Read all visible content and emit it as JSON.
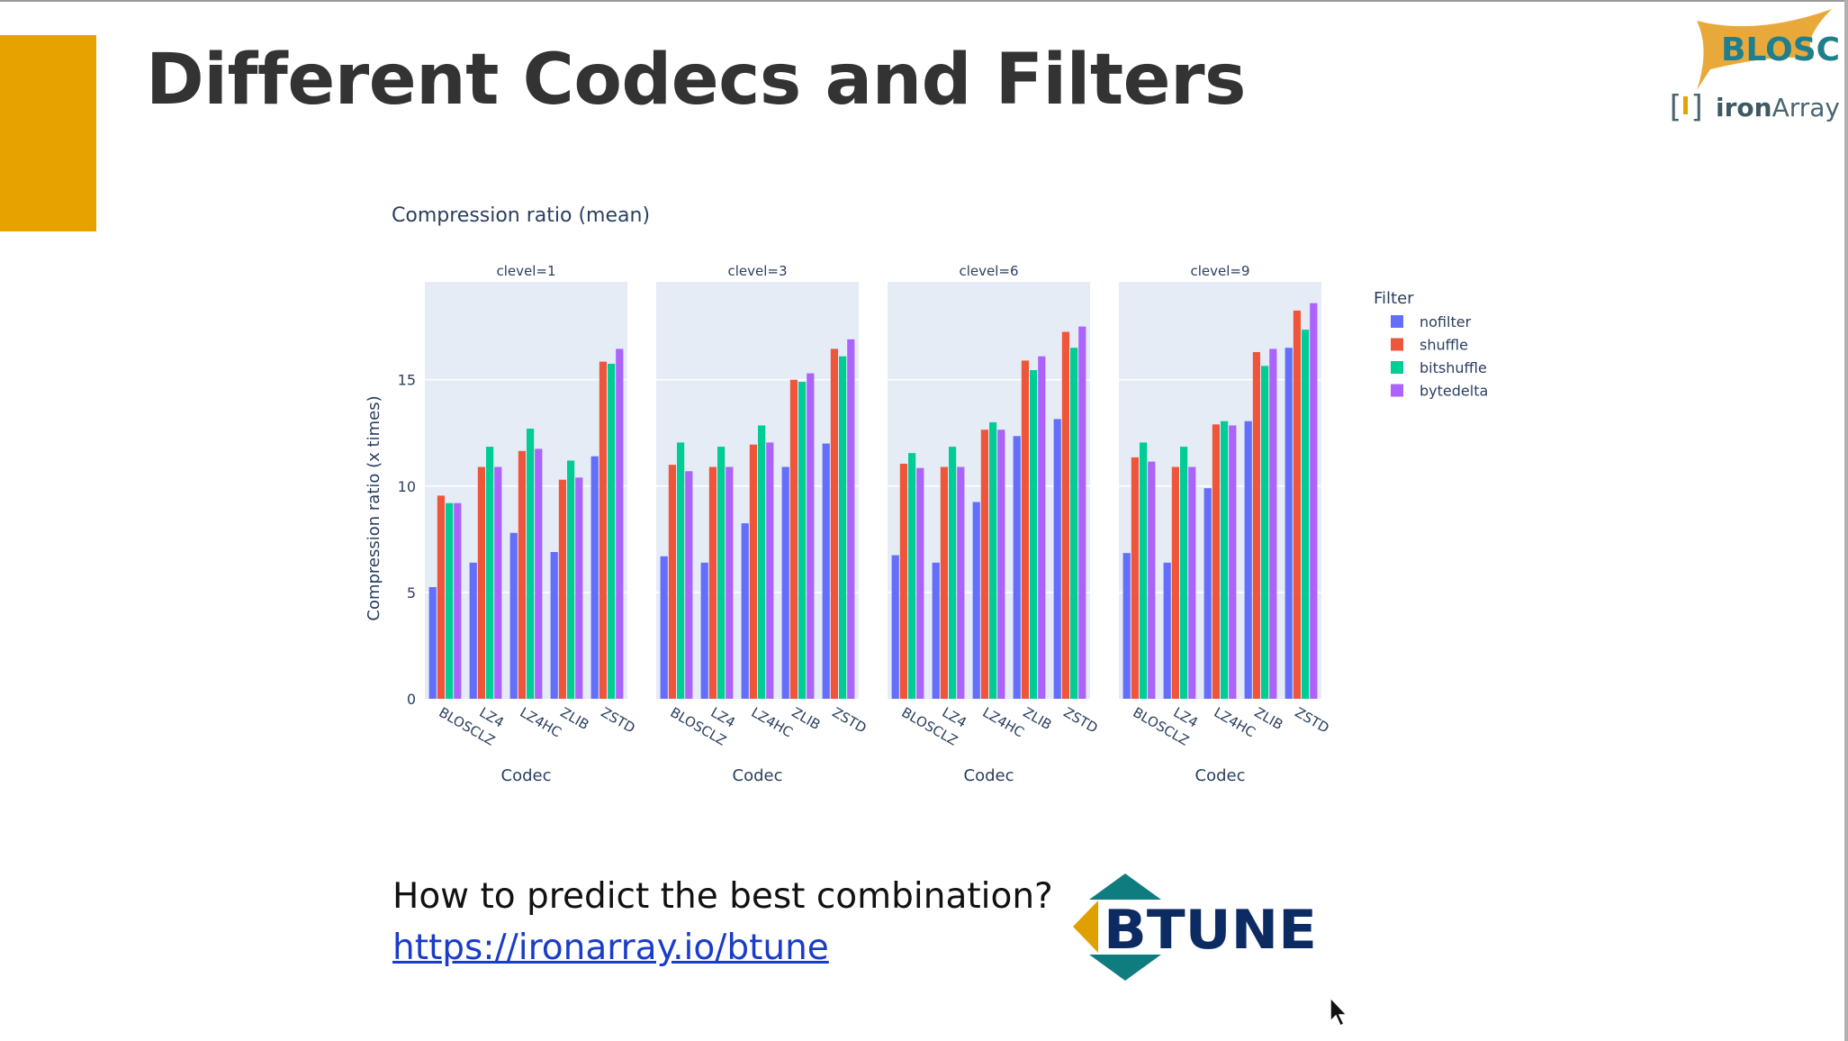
{
  "slide": {
    "title": "Different Codecs and Filters",
    "question": "How to predict the best combination?",
    "link": "https://ironarray.io/btune",
    "logos": {
      "blosc": "BLOSC",
      "ironarray_a": "iron",
      "ironarray_b": "Array",
      "btune": "BTUNE"
    }
  },
  "colors": {
    "accent": "#e8a200",
    "nofilter": "#636efa",
    "shuffle": "#ef553b",
    "bitshuffle": "#00cc96",
    "bytedelta": "#ab63fa",
    "plot_bg": "#e5ecf6"
  },
  "chart_data": {
    "type": "bar",
    "title": "Compression ratio (mean)",
    "xlabel": "Codec",
    "ylabel": "Compression ratio (x times)",
    "ylim": [
      0,
      19.6
    ],
    "yticks": [
      0,
      5,
      10,
      15
    ],
    "categories": [
      "BLOSCLZ",
      "LZ4",
      "LZ4HC",
      "ZLIB",
      "ZSTD"
    ],
    "legend": {
      "title": "Filter",
      "placement": "right"
    },
    "panels": [
      {
        "label": "clevel=1",
        "series": [
          {
            "name": "nofilter",
            "values": [
              5.25,
              6.4,
              7.8,
              6.9,
              11.4
            ]
          },
          {
            "name": "shuffle",
            "values": [
              9.55,
              10.9,
              11.65,
              10.3,
              15.85
            ]
          },
          {
            "name": "bitshuffle",
            "values": [
              9.2,
              11.85,
              12.7,
              11.2,
              15.75
            ]
          },
          {
            "name": "bytedelta",
            "values": [
              9.2,
              10.9,
              11.75,
              10.4,
              16.45
            ]
          }
        ]
      },
      {
        "label": "clevel=3",
        "series": [
          {
            "name": "nofilter",
            "values": [
              6.7,
              6.4,
              8.25,
              10.9,
              12.0
            ]
          },
          {
            "name": "shuffle",
            "values": [
              11.0,
              10.9,
              11.95,
              15.0,
              16.45
            ]
          },
          {
            "name": "bitshuffle",
            "values": [
              12.05,
              11.85,
              12.85,
              14.9,
              16.1
            ]
          },
          {
            "name": "bytedelta",
            "values": [
              10.7,
              10.9,
              12.05,
              15.3,
              16.9
            ]
          }
        ]
      },
      {
        "label": "clevel=6",
        "series": [
          {
            "name": "nofilter",
            "values": [
              6.75,
              6.4,
              9.25,
              12.35,
              13.15
            ]
          },
          {
            "name": "shuffle",
            "values": [
              11.05,
              10.9,
              12.65,
              15.9,
              17.25
            ]
          },
          {
            "name": "bitshuffle",
            "values": [
              11.55,
              11.85,
              13.0,
              15.45,
              16.5
            ]
          },
          {
            "name": "bytedelta",
            "values": [
              10.85,
              10.9,
              12.65,
              16.1,
              17.5
            ]
          }
        ]
      },
      {
        "label": "clevel=9",
        "series": [
          {
            "name": "nofilter",
            "values": [
              6.85,
              6.4,
              9.9,
              13.05,
              16.5
            ]
          },
          {
            "name": "shuffle",
            "values": [
              11.35,
              10.9,
              12.9,
              16.3,
              18.25
            ]
          },
          {
            "name": "bitshuffle",
            "values": [
              12.05,
              11.85,
              13.05,
              15.65,
              17.35
            ]
          },
          {
            "name": "bytedelta",
            "values": [
              11.15,
              10.9,
              12.85,
              16.45,
              18.6
            ]
          }
        ]
      }
    ]
  }
}
